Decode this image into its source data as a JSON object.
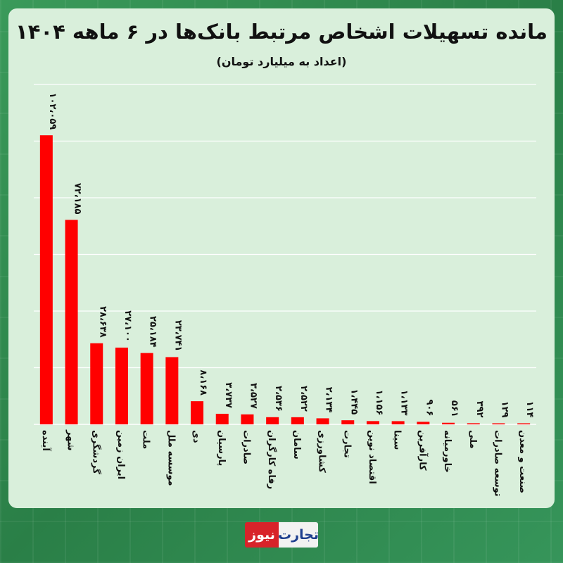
{
  "chart_data": {
    "type": "bar",
    "title": "مانده تسهیلات اشخاص مرتبط بانک‌ها در ۶ ماهه ۱۴۰۴",
    "subtitle": "(اعداد به میلیارد تومان)",
    "categories": [
      "آینده",
      "شهر",
      "گردشگری",
      "ایران زمین",
      "ملت",
      "موسسه ملل",
      "دی",
      "پارسیان",
      "صادرات",
      "رفاه کارگران",
      "سامان",
      "کشاورزی",
      "تجارت",
      "اقتصاد نوین",
      "سینا",
      "کارآفرین",
      "خاورمیانه",
      "ملی",
      "توسعه صادرات",
      "صنعت و معدن"
    ],
    "values": [
      102059,
      72185,
      28638,
      27100,
      25184,
      23741,
      8168,
      3737,
      3527,
      2536,
      2522,
      2134,
      1445,
      1156,
      1133,
      906,
      561,
      392,
      129,
      114
    ],
    "value_labels": [
      "۱۰۲،۰۵۹",
      "۷۲،۱۸۵",
      "۲۸،۶۳۸",
      "۲۷،۱۰۰",
      "۲۵،۱۸۴",
      "۲۳،۷۴۱",
      "۸،۱۶۸",
      "۳،۷۳۷",
      "۳،۵۲۷",
      "۲،۵۳۶",
      "۲،۵۲۲",
      "۲،۱۳۴",
      "۱،۴۴۵",
      "۱،۱۵۶",
      "۱،۱۳۳",
      "۹۰۶",
      "۵۶۱",
      "۳۹۲",
      "۱۲۹",
      "۱۱۴"
    ],
    "ylim": [
      0,
      120000
    ],
    "grid": true,
    "legend": "none",
    "bar_color": "#ff0000"
  },
  "brand": {
    "part_a": "تجارت",
    "part_b": "نیوز"
  }
}
